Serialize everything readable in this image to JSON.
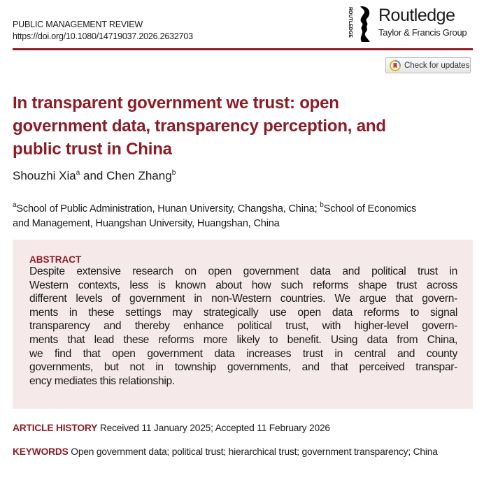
{
  "header": {
    "journal": "PUBLIC MANAGEMENT REVIEW",
    "doi": "https://doi.org/10.1080/14719037.2026.2632703",
    "publisher": {
      "name": "Routledge",
      "group": "Taylor & Francis Group",
      "vertical": "ROUTLEDGE"
    },
    "check_updates": "Check for updates"
  },
  "colors": {
    "accent": "#8b1c24",
    "abstract_bg": "#f5e9e9"
  },
  "article": {
    "title_lines": [
      "In transparent government we trust: open",
      "government data, transparency perception, and",
      "public trust in China"
    ],
    "authors": [
      {
        "name": "Shouzhi Xia",
        "sup": "a"
      },
      {
        "name": "Chen Zhang",
        "sup": "b"
      }
    ],
    "author_joiner": " and ",
    "affiliation_lines": [
      {
        "sup": "a",
        "text": "School of Public Administration, Hunan University, Changsha, China; ",
        "sup2": "b",
        "text2": "School of Economics"
      },
      {
        "text": "and Management, Huangshan University, Huangshan, China"
      }
    ],
    "abstract_label": "ABSTRACT",
    "abstract_lines": [
      "Despite extensive research on open government data and political trust in",
      "Western contexts, less is known about how such reforms shape trust across",
      "different levels of government in non-Western countries. We argue that govern-",
      "ments in these settings may strategically use open data reforms to signal",
      "transparency and thereby enhance political trust, with higher-level govern-",
      "ments that lead these reforms more likely to benefit. Using data from China,",
      "we find that open government data increases trust in central and county",
      "governments, but not in township governments, and that perceived transpar-",
      "ency mediates this relationship."
    ],
    "history_label": "ARTICLE HISTORY",
    "history": "Received 11 January 2025; Accepted 11 February 2026",
    "keywords_label": "KEYWORDS",
    "keywords": "Open government data; political trust; hierarchical trust; government transparency; China"
  }
}
